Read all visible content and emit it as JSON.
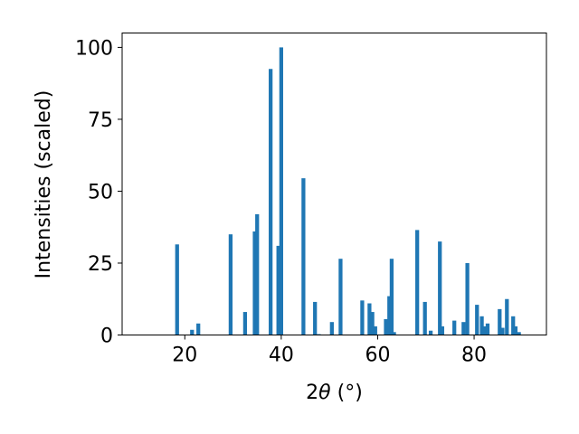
{
  "chart_data": {
    "type": "bar",
    "xlabel_prefix": "2",
    "xlabel_symbol": "θ",
    "xlabel_suffix": " (°)",
    "ylabel": "Intensities (scaled)",
    "xlim": [
      7,
      95
    ],
    "ylim": [
      0,
      105
    ],
    "xticks": [
      20,
      40,
      60,
      80
    ],
    "yticks": [
      0,
      25,
      50,
      75,
      100
    ],
    "bar_width": 0.8,
    "bar_color": "#1f77b4",
    "grid": false,
    "x": [
      18.4,
      21.5,
      22.8,
      29.5,
      32.5,
      34.5,
      35.0,
      37.8,
      39.4,
      40.0,
      44.6,
      47.0,
      47.8,
      50.5,
      52.3,
      56.8,
      58.3,
      58.9,
      59.5,
      61.7,
      62.4,
      62.9,
      63.4,
      68.2,
      69.8,
      71.0,
      72.9,
      73.4,
      75.9,
      77.8,
      78.6,
      80.6,
      81.6,
      82.1,
      82.8,
      85.3,
      85.9,
      86.8,
      88.1,
      88.6,
      89.3
    ],
    "values": [
      31.5,
      1.8,
      4.0,
      35.0,
      8.0,
      36.0,
      42.0,
      92.5,
      31.0,
      100.0,
      54.5,
      11.5,
      0.3,
      4.5,
      26.5,
      12.0,
      11.0,
      8.0,
      3.0,
      5.5,
      13.5,
      26.5,
      1.0,
      36.5,
      11.5,
      1.5,
      32.5,
      3.0,
      5.0,
      4.5,
      25.0,
      10.5,
      6.5,
      3.0,
      4.0,
      9.0,
      2.5,
      12.5,
      6.5,
      3.0,
      1.0
    ]
  }
}
